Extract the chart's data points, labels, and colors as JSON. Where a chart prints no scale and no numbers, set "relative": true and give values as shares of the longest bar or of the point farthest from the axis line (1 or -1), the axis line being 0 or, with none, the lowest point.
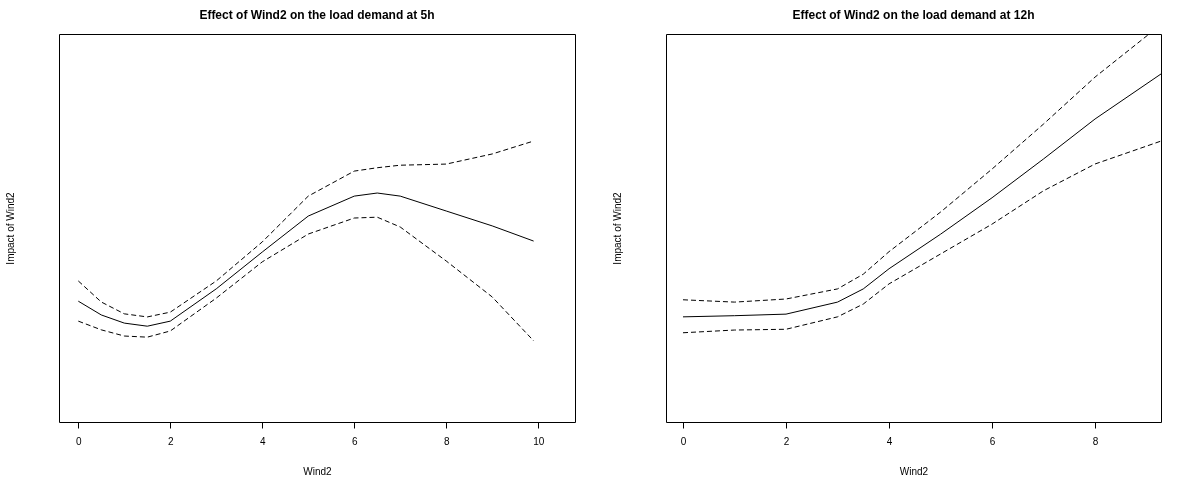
{
  "chart_data": [
    {
      "type": "line",
      "title": "Effect of Wind2 on the load demand at 5h",
      "xlabel": "Wind2",
      "ylabel": "Impact of Wind2",
      "relative": true,
      "xlim": [
        -0.42,
        10.8
      ],
      "xticks": [
        0,
        2,
        4,
        6,
        8,
        10
      ],
      "x": [
        0,
        0.5,
        1,
        1.5,
        2,
        3,
        4,
        5,
        6,
        6.5,
        7,
        8,
        9,
        9.9
      ],
      "series": [
        {
          "color": "#000000",
          "line_style": "solid",
          "values": [
            0.43,
            0.381,
            0.352,
            0.341,
            0.359,
            0.474,
            0.605,
            0.733,
            0.804,
            0.815,
            0.804,
            0.751,
            0.698,
            0.644
          ]
        },
        {
          "color": "#000000",
          "line_style": "dashed",
          "values": [
            0.359,
            0.328,
            0.306,
            0.302,
            0.324,
            0.441,
            0.57,
            0.669,
            0.726,
            0.729,
            0.694,
            0.573,
            0.445,
            0.289
          ]
        },
        {
          "color": "#000000",
          "line_style": "dashed",
          "values": [
            0.502,
            0.427,
            0.385,
            0.374,
            0.391,
            0.502,
            0.641,
            0.804,
            0.893,
            0.905,
            0.914,
            0.918,
            0.954,
            1
          ]
        }
      ]
    },
    {
      "type": "line",
      "title": "Effect of Wind2 on the load demand at 12h",
      "xlabel": "Wind2",
      "ylabel": "Impact of Wind2",
      "relative": true,
      "xlim": [
        -0.33,
        9.28
      ],
      "xticks": [
        0,
        2,
        4,
        6,
        8
      ],
      "x": [
        0,
        1,
        2,
        3,
        3.5,
        4,
        5,
        6,
        7,
        8,
        9.28
      ],
      "series": [
        {
          "color": "#000000",
          "line_style": "solid",
          "values": [
            0.271,
            0.274,
            0.278,
            0.309,
            0.343,
            0.395,
            0.484,
            0.578,
            0.678,
            0.781,
            0.897
          ]
        },
        {
          "color": "#000000",
          "line_style": "dashed",
          "values": [
            0.23,
            0.237,
            0.239,
            0.271,
            0.304,
            0.356,
            0.433,
            0.51,
            0.596,
            0.665,
            0.724
          ]
        },
        {
          "color": "#000000",
          "line_style": "dashed",
          "x": [
            0,
            1,
            2,
            3,
            3.5,
            4,
            5,
            6,
            7,
            8,
            9.05
          ],
          "values": [
            0.315,
            0.309,
            0.317,
            0.343,
            0.381,
            0.439,
            0.541,
            0.652,
            0.768,
            0.889,
            1
          ]
        }
      ]
    }
  ]
}
